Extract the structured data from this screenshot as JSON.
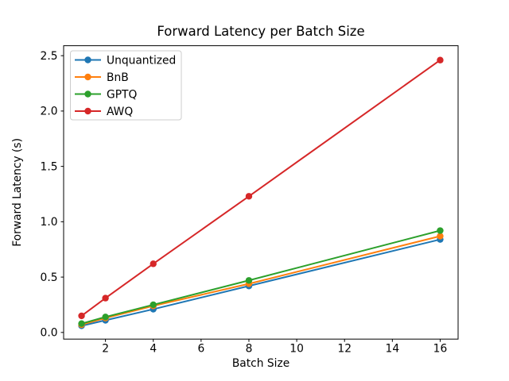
{
  "window": {
    "kind": "matplotlib-figure"
  },
  "chart_data": {
    "type": "line",
    "title": "Forward Latency per Batch Size",
    "xlabel": "Batch Size",
    "ylabel": "Forward Latency (s)",
    "x": [
      1,
      2,
      4,
      8,
      16
    ],
    "series": [
      {
        "name": "Unquantized",
        "color": "#1f77b4",
        "values": [
          0.06,
          0.11,
          0.21,
          0.42,
          0.84
        ]
      },
      {
        "name": "BnB",
        "color": "#ff7f0e",
        "values": [
          0.07,
          0.13,
          0.24,
          0.44,
          0.87
        ]
      },
      {
        "name": "GPTQ",
        "color": "#2ca02c",
        "values": [
          0.08,
          0.14,
          0.25,
          0.47,
          0.92
        ]
      },
      {
        "name": "AWQ",
        "color": "#d62728",
        "values": [
          0.15,
          0.31,
          0.62,
          1.23,
          2.46
        ]
      }
    ],
    "xticks": [
      2,
      4,
      6,
      8,
      10,
      12,
      14,
      16
    ],
    "yticks": [
      "0.0",
      "0.5",
      "1.0",
      "1.5",
      "2.0",
      "2.5"
    ],
    "xlim": [
      0.25,
      16.75
    ],
    "ylim": [
      -0.06,
      2.59
    ],
    "grid": false,
    "legend_position": "upper left",
    "marker": "circle",
    "axis_color": "#000000",
    "legend_border_color": "#cccccc",
    "legend_background": "#ffffff"
  }
}
